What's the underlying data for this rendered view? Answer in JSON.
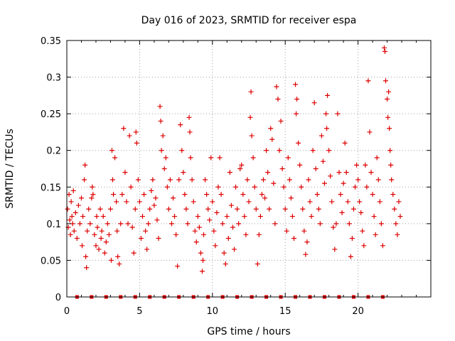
{
  "chart_data": {
    "type": "scatter",
    "title": "Day 016 of 2023, SRMTID for receiver espa",
    "xlabel": "GPS time / hours",
    "ylabel": "SRMTID / TECUs",
    "xlim": [
      0,
      25
    ],
    "ylim": [
      0,
      0.35
    ],
    "xticks": [
      "0",
      "5",
      "10",
      "15",
      "20"
    ],
    "xtick_values": [
      0,
      5,
      10,
      15,
      20
    ],
    "yticks": [
      "0",
      "0.05",
      "0.1",
      "0.15",
      "0.2",
      "0.25",
      "0.3",
      "0.35"
    ],
    "ytick_values": [
      0,
      0.05,
      0.1,
      0.15,
      0.2,
      0.25,
      0.3,
      0.35
    ],
    "grid": true,
    "marker": "+",
    "color": "#dd0000",
    "series": [
      {
        "name": "SRMTID",
        "points": [
          [
            0.05,
            0.12
          ],
          [
            0.1,
            0.095
          ],
          [
            0.15,
            0.14
          ],
          [
            0.2,
            0.105
          ],
          [
            0.25,
            0.085
          ],
          [
            0.3,
            0.13
          ],
          [
            0.35,
            0.11
          ],
          [
            0.4,
            0.1
          ],
          [
            0.45,
            0.145
          ],
          [
            0.5,
            0.09
          ],
          [
            0.6,
            0.115
          ],
          [
            0.7,
            0.08
          ],
          [
            0.8,
            0.125
          ],
          [
            0.9,
            0.1
          ],
          [
            1.0,
            0.135
          ],
          [
            1.05,
            0.07
          ],
          [
            1.1,
            0.11
          ],
          [
            1.2,
            0.16
          ],
          [
            1.25,
            0.18
          ],
          [
            1.3,
            0.055
          ],
          [
            1.35,
            0.04
          ],
          [
            1.4,
            0.09
          ],
          [
            1.5,
            0.12
          ],
          [
            1.6,
            0.1
          ],
          [
            1.7,
            0.135
          ],
          [
            1.75,
            0.15
          ],
          [
            1.8,
            0.14
          ],
          [
            1.9,
            0.085
          ],
          [
            2.0,
            0.07
          ],
          [
            2.05,
            0.11
          ],
          [
            2.1,
            0.095
          ],
          [
            2.2,
            0.065
          ],
          [
            2.3,
            0.12
          ],
          [
            2.35,
            0.08
          ],
          [
            2.4,
            0.09
          ],
          [
            2.5,
            0.11
          ],
          [
            2.6,
            0.06
          ],
          [
            2.7,
            0.075
          ],
          [
            2.8,
            0.1
          ],
          [
            2.9,
            0.085
          ],
          [
            3.0,
            0.12
          ],
          [
            3.05,
            0.05
          ],
          [
            3.1,
            0.2
          ],
          [
            3.15,
            0.16
          ],
          [
            3.2,
            0.14
          ],
          [
            3.3,
            0.19
          ],
          [
            3.4,
            0.13
          ],
          [
            3.45,
            0.09
          ],
          [
            3.5,
            0.055
          ],
          [
            3.6,
            0.045
          ],
          [
            3.7,
            0.1
          ],
          [
            3.8,
            0.14
          ],
          [
            3.9,
            0.23
          ],
          [
            4.0,
            0.17
          ],
          [
            4.1,
            0.13
          ],
          [
            4.2,
            0.1
          ],
          [
            4.3,
            0.22
          ],
          [
            4.4,
            0.15
          ],
          [
            4.5,
            0.095
          ],
          [
            4.6,
            0.06
          ],
          [
            4.7,
            0.12
          ],
          [
            4.75,
            0.225
          ],
          [
            4.8,
            0.21
          ],
          [
            4.9,
            0.16
          ],
          [
            5.0,
            0.13
          ],
          [
            5.1,
            0.08
          ],
          [
            5.2,
            0.11
          ],
          [
            5.3,
            0.14
          ],
          [
            5.4,
            0.09
          ],
          [
            5.5,
            0.065
          ],
          [
            5.6,
            0.1
          ],
          [
            5.7,
            0.12
          ],
          [
            5.8,
            0.145
          ],
          [
            5.9,
            0.16
          ],
          [
            6.0,
            0.125
          ],
          [
            6.1,
            0.135
          ],
          [
            6.2,
            0.105
          ],
          [
            6.3,
            0.08
          ],
          [
            6.4,
            0.26
          ],
          [
            6.45,
            0.24
          ],
          [
            6.5,
            0.2
          ],
          [
            6.6,
            0.22
          ],
          [
            6.7,
            0.175
          ],
          [
            6.8,
            0.19
          ],
          [
            6.9,
            0.15
          ],
          [
            7.0,
            0.12
          ],
          [
            7.1,
            0.16
          ],
          [
            7.2,
            0.1
          ],
          [
            7.3,
            0.135
          ],
          [
            7.4,
            0.11
          ],
          [
            7.5,
            0.085
          ],
          [
            7.6,
            0.042
          ],
          [
            7.7,
            0.16
          ],
          [
            7.8,
            0.235
          ],
          [
            7.9,
            0.2
          ],
          [
            8.0,
            0.17
          ],
          [
            8.1,
            0.14
          ],
          [
            8.2,
            0.12
          ],
          [
            8.3,
            0.1
          ],
          [
            8.4,
            0.245
          ],
          [
            8.45,
            0.225
          ],
          [
            8.5,
            0.19
          ],
          [
            8.6,
            0.16
          ],
          [
            8.7,
            0.13
          ],
          [
            8.8,
            0.09
          ],
          [
            8.9,
            0.075
          ],
          [
            9.0,
            0.11
          ],
          [
            9.1,
            0.095
          ],
          [
            9.2,
            0.06
          ],
          [
            9.3,
            0.035
          ],
          [
            9.35,
            0.05
          ],
          [
            9.4,
            0.085
          ],
          [
            9.5,
            0.16
          ],
          [
            9.6,
            0.14
          ],
          [
            9.7,
            0.12
          ],
          [
            9.8,
            0.105
          ],
          [
            9.9,
            0.19
          ],
          [
            10.0,
            0.13
          ],
          [
            10.1,
            0.09
          ],
          [
            10.2,
            0.07
          ],
          [
            10.3,
            0.115
          ],
          [
            10.4,
            0.15
          ],
          [
            10.5,
            0.19
          ],
          [
            10.6,
            0.14
          ],
          [
            10.7,
            0.1
          ],
          [
            10.8,
            0.06
          ],
          [
            10.9,
            0.045
          ],
          [
            11.0,
            0.11
          ],
          [
            11.1,
            0.08
          ],
          [
            11.2,
            0.17
          ],
          [
            11.3,
            0.125
          ],
          [
            11.4,
            0.095
          ],
          [
            11.5,
            0.065
          ],
          [
            11.6,
            0.15
          ],
          [
            11.7,
            0.12
          ],
          [
            11.8,
            0.1
          ],
          [
            11.9,
            0.175
          ],
          [
            12.0,
            0.18
          ],
          [
            12.1,
            0.14
          ],
          [
            12.2,
            0.11
          ],
          [
            12.3,
            0.085
          ],
          [
            12.4,
            0.16
          ],
          [
            12.5,
            0.13
          ],
          [
            12.6,
            0.245
          ],
          [
            12.65,
            0.28
          ],
          [
            12.7,
            0.22
          ],
          [
            12.8,
            0.19
          ],
          [
            12.9,
            0.15
          ],
          [
            13.0,
            0.12
          ],
          [
            13.1,
            0.045
          ],
          [
            13.2,
            0.085
          ],
          [
            13.3,
            0.11
          ],
          [
            13.4,
            0.14
          ],
          [
            13.5,
            0.16
          ],
          [
            13.6,
            0.135
          ],
          [
            13.7,
            0.2
          ],
          [
            13.8,
            0.17
          ],
          [
            13.9,
            0.12
          ],
          [
            14.0,
            0.23
          ],
          [
            14.1,
            0.215
          ],
          [
            14.2,
            0.155
          ],
          [
            14.3,
            0.1
          ],
          [
            14.4,
            0.287
          ],
          [
            14.5,
            0.27
          ],
          [
            14.6,
            0.2
          ],
          [
            14.7,
            0.24
          ],
          [
            14.8,
            0.175
          ],
          [
            14.9,
            0.15
          ],
          [
            15.0,
            0.12
          ],
          [
            15.1,
            0.09
          ],
          [
            15.2,
            0.19
          ],
          [
            15.3,
            0.16
          ],
          [
            15.4,
            0.135
          ],
          [
            15.5,
            0.11
          ],
          [
            15.6,
            0.08
          ],
          [
            15.7,
            0.29
          ],
          [
            15.75,
            0.25
          ],
          [
            15.8,
            0.27
          ],
          [
            15.9,
            0.21
          ],
          [
            16.0,
            0.18
          ],
          [
            16.1,
            0.15
          ],
          [
            16.2,
            0.12
          ],
          [
            16.3,
            0.09
          ],
          [
            16.4,
            0.058
          ],
          [
            16.5,
            0.075
          ],
          [
            16.6,
            0.16
          ],
          [
            16.7,
            0.13
          ],
          [
            16.8,
            0.11
          ],
          [
            16.9,
            0.2
          ],
          [
            17.0,
            0.265
          ],
          [
            17.1,
            0.175
          ],
          [
            17.2,
            0.14
          ],
          [
            17.3,
            0.12
          ],
          [
            17.4,
            0.1
          ],
          [
            17.5,
            0.22
          ],
          [
            17.6,
            0.185
          ],
          [
            17.7,
            0.155
          ],
          [
            17.8,
            0.25
          ],
          [
            17.85,
            0.23
          ],
          [
            17.9,
            0.275
          ],
          [
            18.0,
            0.2
          ],
          [
            18.1,
            0.165
          ],
          [
            18.2,
            0.13
          ],
          [
            18.3,
            0.095
          ],
          [
            18.4,
            0.065
          ],
          [
            18.5,
            0.1
          ],
          [
            18.6,
            0.25
          ],
          [
            18.7,
            0.17
          ],
          [
            18.8,
            0.14
          ],
          [
            18.9,
            0.115
          ],
          [
            19.0,
            0.155
          ],
          [
            19.1,
            0.21
          ],
          [
            19.2,
            0.17
          ],
          [
            19.3,
            0.13
          ],
          [
            19.4,
            0.1
          ],
          [
            19.5,
            0.055
          ],
          [
            19.6,
            0.08
          ],
          [
            19.7,
            0.12
          ],
          [
            19.8,
            0.15
          ],
          [
            19.9,
            0.18
          ],
          [
            20.0,
            0.16
          ],
          [
            20.1,
            0.13
          ],
          [
            20.2,
            0.115
          ],
          [
            20.3,
            0.09
          ],
          [
            20.4,
            0.07
          ],
          [
            20.5,
            0.18
          ],
          [
            20.6,
            0.15
          ],
          [
            20.7,
            0.295
          ],
          [
            20.8,
            0.225
          ],
          [
            20.9,
            0.17
          ],
          [
            21.0,
            0.14
          ],
          [
            21.1,
            0.11
          ],
          [
            21.2,
            0.085
          ],
          [
            21.3,
            0.19
          ],
          [
            21.4,
            0.16
          ],
          [
            21.5,
            0.13
          ],
          [
            21.6,
            0.1
          ],
          [
            21.7,
            0.07
          ],
          [
            21.8,
            0.34
          ],
          [
            21.85,
            0.335
          ],
          [
            21.9,
            0.295
          ],
          [
            22.0,
            0.27
          ],
          [
            22.05,
            0.245
          ],
          [
            22.1,
            0.28
          ],
          [
            22.15,
            0.23
          ],
          [
            22.2,
            0.2
          ],
          [
            22.25,
            0.18
          ],
          [
            22.3,
            0.16
          ],
          [
            22.4,
            0.14
          ],
          [
            22.5,
            0.12
          ],
          [
            22.6,
            0.1
          ],
          [
            22.7,
            0.085
          ],
          [
            22.8,
            0.13
          ],
          [
            22.9,
            0.11
          ]
        ]
      },
      {
        "name": "data gaps",
        "marker": "square",
        "y": 0,
        "x": [
          0.7,
          1.7,
          2.7,
          3.7,
          4.7,
          5.7,
          6.7,
          7.7,
          8.7,
          9.7,
          10.7,
          11.7,
          12.7,
          13.7,
          14.7,
          15.7,
          16.7,
          17.7,
          18.7,
          19.7,
          20.7,
          21.7
        ]
      }
    ]
  }
}
